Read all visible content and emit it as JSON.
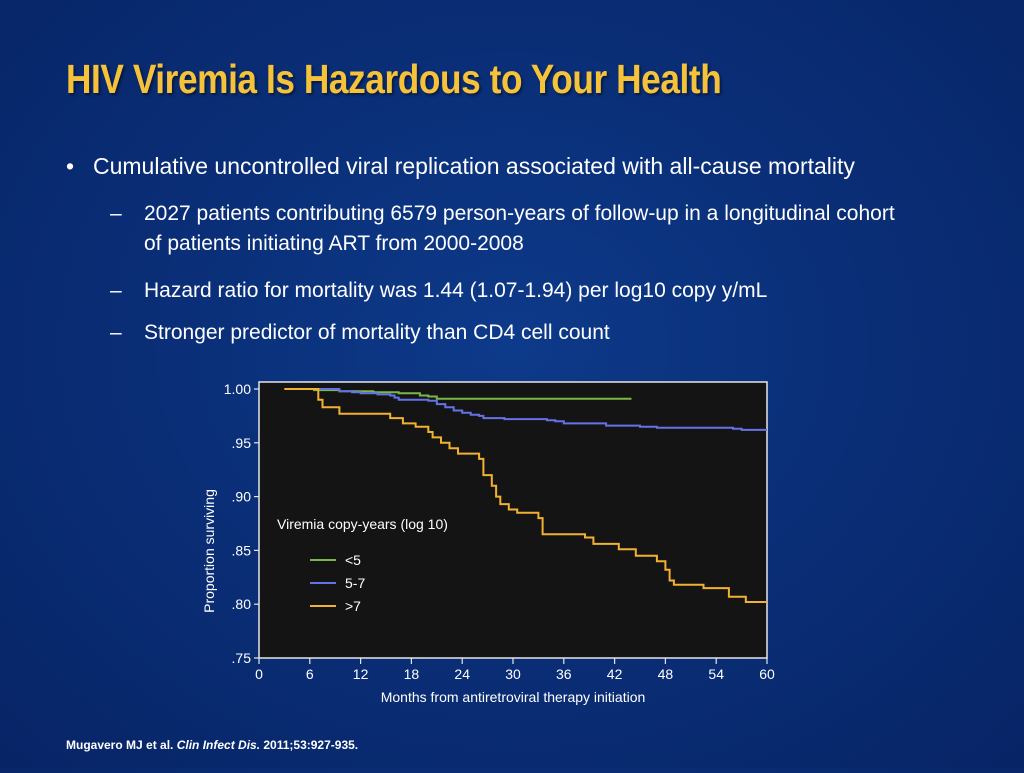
{
  "slide": {
    "title": "HIV Viremia Is Hazardous to Your Health",
    "bullet_mark": "•",
    "dash_mark": "–",
    "bullet": "Cumulative uncontrolled viral replication associated with all-cause mortality",
    "sub_bullets": [
      "2027 patients contributing 6579 person-years of follow-up in a longitudinal cohort",
      "of patients initiating ART from 2000-2008",
      "Hazard ratio for mortality was 1.44 (1.07-1.94) per log10 copy y/mL",
      "Stronger predictor of mortality than CD4 cell count"
    ],
    "citation": {
      "authors": "Mugavero MJ et al. ",
      "journal": "Clin Infect Dis.",
      "details": " 2011;53:927-935."
    },
    "colors": {
      "title": "#f6c23a",
      "plot_background": "#141414"
    }
  },
  "chart_data": {
    "type": "line",
    "xlabel": "Months from antiretroviral therapy initiation",
    "ylabel": "Proportion surviving",
    "xlim": [
      0,
      60
    ],
    "ylim": [
      0.75,
      1.0
    ],
    "x_ticks": [
      0,
      6,
      12,
      18,
      24,
      30,
      36,
      42,
      48,
      54,
      60
    ],
    "x_tick_labels": [
      "0",
      "6",
      "12",
      "18",
      "24",
      "30",
      "36",
      "42",
      "48",
      "54",
      "60"
    ],
    "y_ticks": [
      0.75,
      0.8,
      0.85,
      0.9,
      0.95,
      1.0
    ],
    "y_tick_labels": [
      ".75",
      ".80",
      ".85",
      ".90",
      ".95",
      "1.00"
    ],
    "legend_title": "Viremia copy-years (log 10)",
    "legend_position": "middle-left",
    "grid": false,
    "series": [
      {
        "name": "<5",
        "color": "#7ab648",
        "points": [
          [
            3,
            1.0
          ],
          [
            5.5,
            1.0
          ],
          [
            6.5,
            0.999
          ],
          [
            9,
            0.999
          ],
          [
            9.5,
            0.998
          ],
          [
            13,
            0.998
          ],
          [
            13.5,
            0.997
          ],
          [
            16,
            0.997
          ],
          [
            16.5,
            0.996
          ],
          [
            18.5,
            0.996
          ],
          [
            19,
            0.994
          ],
          [
            20,
            0.993
          ],
          [
            21,
            0.991
          ],
          [
            44,
            0.991
          ]
        ]
      },
      {
        "name": "5-7",
        "color": "#6373e6",
        "points": [
          [
            3,
            1.0
          ],
          [
            9,
            1.0
          ],
          [
            9.5,
            0.998
          ],
          [
            11,
            0.997
          ],
          [
            12,
            0.996
          ],
          [
            14,
            0.995
          ],
          [
            15.5,
            0.994
          ],
          [
            16,
            0.992
          ],
          [
            16.5,
            0.99
          ],
          [
            19,
            0.99
          ],
          [
            20,
            0.989
          ],
          [
            21,
            0.986
          ],
          [
            22,
            0.983
          ],
          [
            23,
            0.98
          ],
          [
            24,
            0.978
          ],
          [
            25,
            0.976
          ],
          [
            26,
            0.975
          ],
          [
            26.5,
            0.973
          ],
          [
            29,
            0.972
          ],
          [
            34,
            0.971
          ],
          [
            35,
            0.97
          ],
          [
            36,
            0.968
          ],
          [
            41,
            0.966
          ],
          [
            45,
            0.965
          ],
          [
            47,
            0.964
          ],
          [
            56,
            0.963
          ],
          [
            57,
            0.962
          ],
          [
            60,
            0.962
          ]
        ]
      },
      {
        "name": ">7",
        "color": "#f2b131",
        "points": [
          [
            3,
            1.0
          ],
          [
            6.5,
            1.0
          ],
          [
            7,
            0.99
          ],
          [
            7.5,
            0.983
          ],
          [
            9.5,
            0.977
          ],
          [
            14.5,
            0.977
          ],
          [
            15.5,
            0.973
          ],
          [
            17,
            0.968
          ],
          [
            18.5,
            0.965
          ],
          [
            20,
            0.96
          ],
          [
            20.5,
            0.955
          ],
          [
            21.5,
            0.95
          ],
          [
            22.5,
            0.945
          ],
          [
            23.5,
            0.94
          ],
          [
            26,
            0.935
          ],
          [
            26.5,
            0.92
          ],
          [
            27.5,
            0.91
          ],
          [
            28,
            0.9
          ],
          [
            28.5,
            0.893
          ],
          [
            29.5,
            0.888
          ],
          [
            30.5,
            0.885
          ],
          [
            33,
            0.88
          ],
          [
            33.5,
            0.865
          ],
          [
            38.5,
            0.862
          ],
          [
            39.5,
            0.856
          ],
          [
            42.5,
            0.851
          ],
          [
            44.5,
            0.845
          ],
          [
            47,
            0.84
          ],
          [
            48,
            0.832
          ],
          [
            48.5,
            0.822
          ],
          [
            49,
            0.818
          ],
          [
            52.5,
            0.815
          ],
          [
            55.5,
            0.807
          ],
          [
            57.5,
            0.802
          ],
          [
            60,
            0.802
          ]
        ]
      }
    ]
  }
}
